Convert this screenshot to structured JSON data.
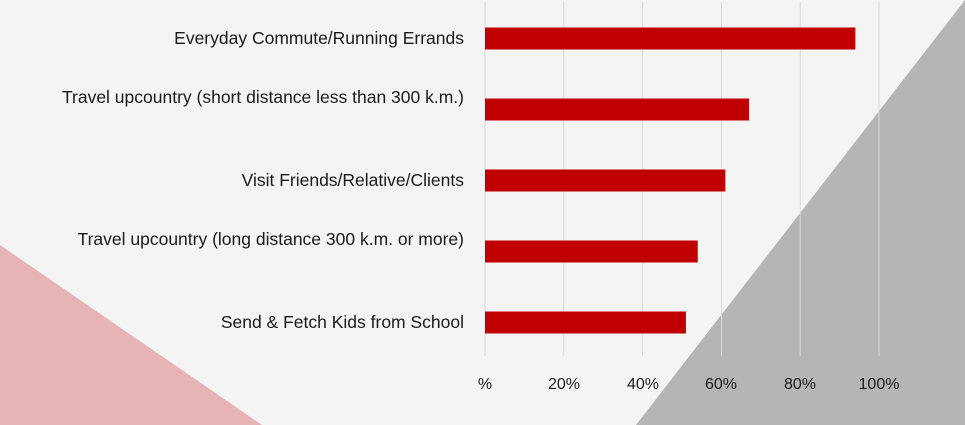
{
  "chart_data": {
    "type": "bar",
    "orientation": "horizontal",
    "title": "",
    "xlabel": "",
    "ylabel": "",
    "categories": [
      "Everyday Commute/Running Errands",
      "Travel upcountry (short distance less than 300 k.m.)",
      "Visit Friends/Relative/Clients",
      "Travel upcountry (long distance 300 k.m. or more)",
      "Send & Fetch Kids from School"
    ],
    "values": [
      94,
      67,
      61,
      54,
      51
    ],
    "xlim": [
      0,
      100
    ],
    "x_ticks": [
      "%",
      "20%",
      "40%",
      "60%",
      "80%",
      "100%"
    ],
    "grid": "vertical",
    "legend": "none",
    "colors": {
      "bar": "#c00000",
      "grid": "#d9d9d9",
      "background": "#f4f4f4",
      "accent_pink": "#e6b4b6",
      "accent_gray": "#b5b5b5"
    }
  }
}
